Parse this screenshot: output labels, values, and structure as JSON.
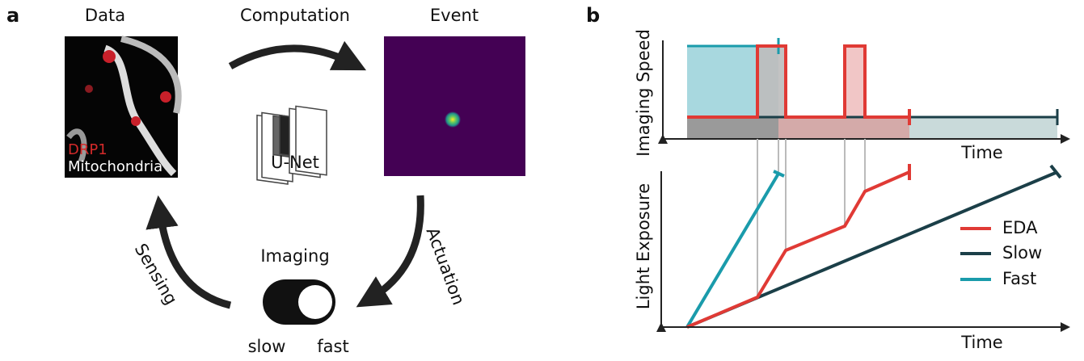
{
  "panel_a": {
    "label": "a",
    "data_title": "Data",
    "computation_title": "Computation",
    "event_title": "Event",
    "image_labels": [
      "DRP1",
      "Mitochondria"
    ],
    "network_label": "U-Net",
    "switch_title": "Imaging",
    "switch_options": [
      "slow",
      "fast"
    ],
    "sensing_label": "Sensing",
    "actuation_label": "Actuation"
  },
  "panel_b": {
    "label": "b",
    "top_y_label": "Imaging Speed",
    "top_x_label": "Time",
    "bottom_y_label": "Light Exposure",
    "bottom_x_label": "Time",
    "legend": [
      "EDA",
      "Slow",
      "Fast"
    ]
  }
}
